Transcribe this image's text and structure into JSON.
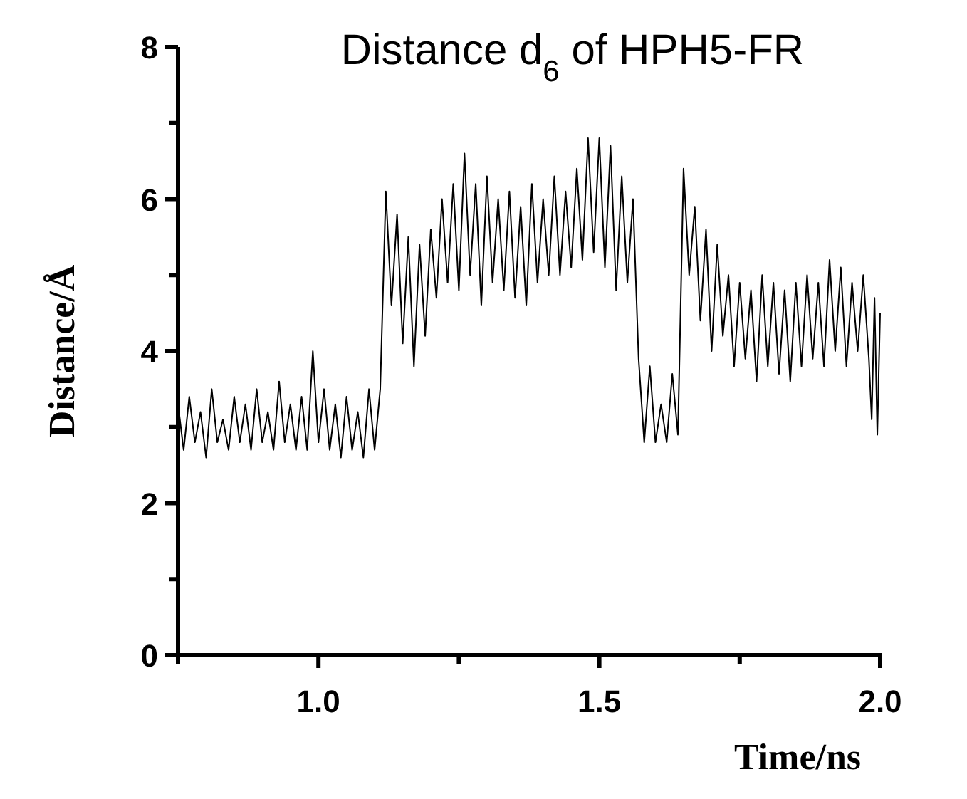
{
  "chart_data": {
    "type": "line",
    "title": "Distance d$_{6}$ of HPH5-FR",
    "xlabel": "Time/ns",
    "ylabel": "Distance/Å",
    "xlim": [
      0.75,
      2.0
    ],
    "xticks": [
      {
        "value": 0.75,
        "label": null
      },
      {
        "value": 1,
        "label": "1.0"
      },
      {
        "value": 1.25,
        "label": null
      },
      1.5,
      {
        "value": 1.75,
        "label": null
      },
      {
        "value": 2,
        "label": "2.0"
      }
    ],
    "ylim": [
      0,
      8
    ],
    "yticks": [
      0,
      {
        "value": 1,
        "label": null
      },
      2,
      {
        "value": 3,
        "label": null
      },
      4,
      {
        "value": 5,
        "label": null
      },
      6,
      {
        "value": 7,
        "label": null
      },
      8
    ],
    "grid": false,
    "marker": "none",
    "line_style": "solid",
    "series": [
      {
        "color": "#000000",
        "x": [
          0.75,
          0.76,
          0.77,
          0.78,
          0.79,
          0.8,
          0.81,
          0.82,
          0.83,
          0.84,
          0.85,
          0.86,
          0.87,
          0.88,
          0.89,
          0.9,
          0.91,
          0.92,
          0.93,
          0.94,
          0.95,
          0.96,
          0.97,
          0.98,
          0.99,
          1.0,
          1.01,
          1.02,
          1.03,
          1.04,
          1.05,
          1.06,
          1.07,
          1.08,
          1.09,
          1.1,
          1.11,
          1.12,
          1.13,
          1.14,
          1.15,
          1.16,
          1.17,
          1.18,
          1.19,
          1.2,
          1.21,
          1.22,
          1.23,
          1.24,
          1.25,
          1.26,
          1.27,
          1.28,
          1.29,
          1.3,
          1.31,
          1.32,
          1.33,
          1.34,
          1.35,
          1.36,
          1.37,
          1.38,
          1.39,
          1.4,
          1.41,
          1.42,
          1.43,
          1.44,
          1.45,
          1.46,
          1.47,
          1.48,
          1.49,
          1.5,
          1.51,
          1.52,
          1.53,
          1.54,
          1.55,
          1.56,
          1.57,
          1.58,
          1.59,
          1.6,
          1.61,
          1.62,
          1.63,
          1.64,
          1.65,
          1.66,
          1.67,
          1.68,
          1.69,
          1.7,
          1.71,
          1.72,
          1.73,
          1.74,
          1.75,
          1.76,
          1.77,
          1.78,
          1.79,
          1.8,
          1.81,
          1.82,
          1.83,
          1.84,
          1.85,
          1.86,
          1.87,
          1.88,
          1.89,
          1.9,
          1.91,
          1.92,
          1.93,
          1.94,
          1.95,
          1.96,
          1.97,
          1.98,
          1.985,
          1.99,
          1.995,
          2.0
        ],
        "values": [
          3.3,
          2.7,
          3.4,
          2.8,
          3.2,
          2.6,
          3.5,
          2.8,
          3.1,
          2.7,
          3.4,
          2.8,
          3.3,
          2.7,
          3.5,
          2.8,
          3.2,
          2.7,
          3.6,
          2.8,
          3.3,
          2.7,
          3.4,
          2.7,
          4.0,
          2.8,
          3.5,
          2.7,
          3.3,
          2.6,
          3.4,
          2.7,
          3.2,
          2.6,
          3.5,
          2.7,
          3.5,
          6.1,
          4.6,
          5.8,
          4.1,
          5.5,
          3.8,
          5.4,
          4.2,
          5.6,
          4.7,
          6.0,
          4.9,
          6.2,
          4.8,
          6.6,
          5.0,
          6.2,
          4.6,
          6.3,
          4.9,
          6.0,
          4.8,
          6.1,
          4.7,
          5.9,
          4.6,
          6.2,
          4.9,
          6.0,
          5.0,
          6.3,
          5.0,
          6.1,
          5.1,
          6.4,
          5.2,
          6.8,
          5.3,
          6.8,
          5.1,
          6.7,
          4.8,
          6.3,
          4.9,
          6.0,
          3.9,
          2.8,
          3.8,
          2.8,
          3.3,
          2.8,
          3.7,
          2.9,
          6.4,
          5.0,
          5.9,
          4.4,
          5.6,
          4.0,
          5.4,
          4.2,
          5.0,
          3.8,
          4.9,
          3.9,
          4.8,
          3.6,
          5.0,
          3.8,
          4.9,
          3.7,
          4.8,
          3.6,
          4.9,
          3.8,
          5.0,
          3.9,
          4.9,
          3.8,
          5.2,
          4.0,
          5.1,
          3.8,
          4.9,
          4.0,
          5.0,
          3.9,
          3.1,
          4.7,
          2.9,
          4.5
        ]
      }
    ]
  }
}
